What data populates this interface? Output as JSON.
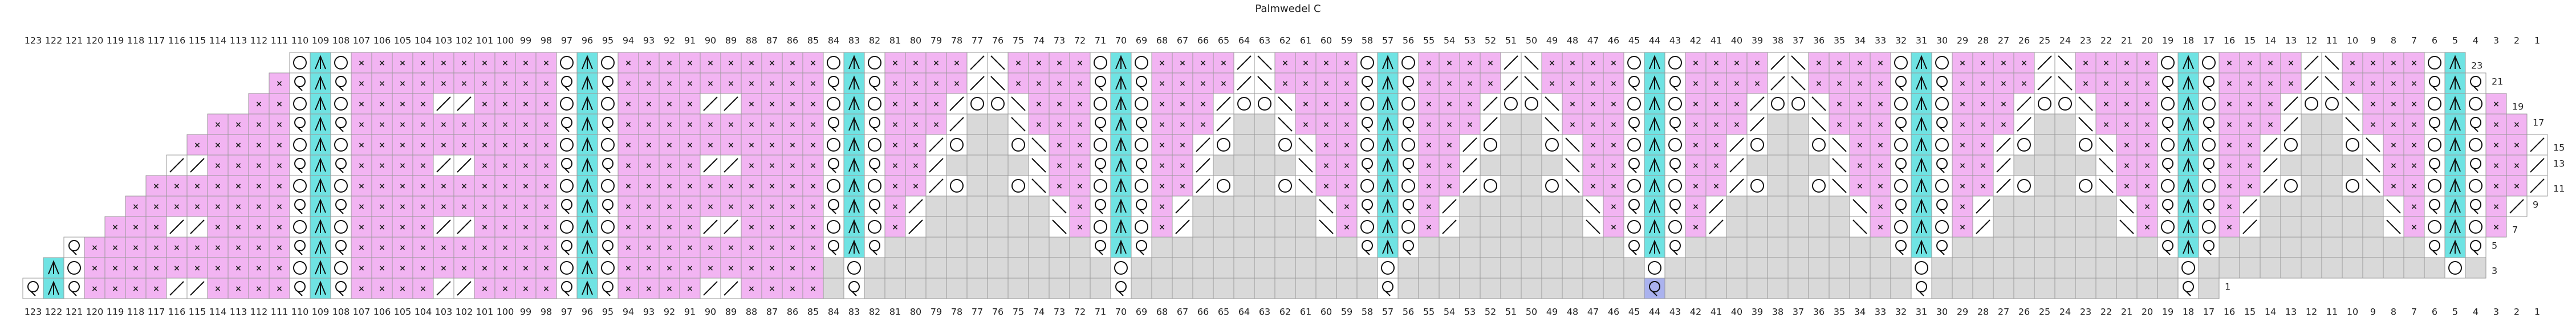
{
  "title": "Palmwedel C",
  "column_labels": [
    123,
    122,
    121,
    120,
    119,
    118,
    117,
    116,
    115,
    114,
    113,
    112,
    111,
    110,
    109,
    108,
    107,
    106,
    105,
    104,
    103,
    102,
    101,
    100,
    99,
    98,
    97,
    96,
    95,
    94,
    93,
    92,
    91,
    90,
    89,
    88,
    87,
    86,
    85,
    84,
    83,
    82,
    81,
    80,
    79,
    78,
    77,
    76,
    75,
    74,
    73,
    72,
    71,
    70,
    69,
    68,
    67,
    66,
    65,
    64,
    63,
    62,
    61,
    60,
    59,
    58,
    57,
    56,
    55,
    54,
    53,
    52,
    51,
    50,
    49,
    48,
    47,
    46,
    45,
    44,
    43,
    42,
    41,
    40,
    39,
    38,
    37,
    36,
    35,
    34,
    33,
    32,
    31,
    30,
    29,
    28,
    27,
    26,
    25,
    24,
    23,
    22,
    21,
    20,
    19,
    18,
    17,
    16,
    15,
    14,
    13,
    12,
    11,
    10,
    9,
    8,
    7,
    6,
    5,
    4,
    3,
    2,
    1
  ],
  "row_labels": [
    1,
    3,
    5,
    7,
    9,
    11,
    13,
    15,
    17,
    19,
    21,
    23
  ]
}
